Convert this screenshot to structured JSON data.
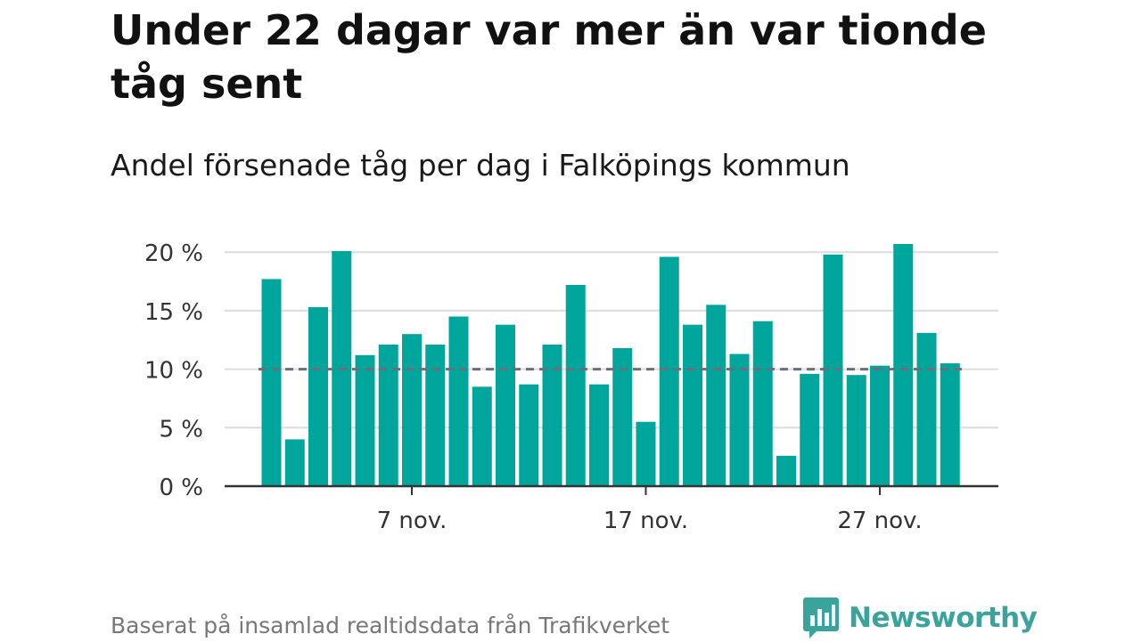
{
  "header": {
    "title": "Under 22 dagar var mer än var tionde tåg sent",
    "subtitle": "Andel försenade tåg per dag i Falköpings kommun"
  },
  "footer": {
    "note": "Baserat på insamlad realtidsdata från Trafikverket",
    "logo_text": "Newsworthy"
  },
  "colors": {
    "bar": "#00a69c",
    "reference_line": "#6e6e7a",
    "grid": "#dcdcdc",
    "axis": "#333333",
    "logo": "#3aa39b"
  },
  "chart_data": {
    "type": "bar",
    "x": [
      "2023-11-01",
      "2023-11-02",
      "2023-11-03",
      "2023-11-04",
      "2023-11-05",
      "2023-11-06",
      "2023-11-07",
      "2023-11-08",
      "2023-11-09",
      "2023-11-10",
      "2023-11-11",
      "2023-11-12",
      "2023-11-13",
      "2023-11-14",
      "2023-11-15",
      "2023-11-16",
      "2023-11-17",
      "2023-11-18",
      "2023-11-19",
      "2023-11-20",
      "2023-11-21",
      "2023-11-22",
      "2023-11-23",
      "2023-11-24",
      "2023-11-25",
      "2023-11-26",
      "2023-11-27",
      "2023-11-28",
      "2023-11-29",
      "2023-11-30"
    ],
    "values": [
      17.7,
      4.0,
      15.3,
      20.1,
      11.2,
      12.1,
      13.0,
      12.1,
      14.5,
      8.5,
      13.8,
      8.7,
      12.1,
      17.2,
      8.7,
      11.8,
      5.5,
      19.6,
      13.8,
      15.5,
      11.3,
      14.1,
      2.6,
      9.6,
      19.8,
      9.5,
      10.3,
      20.7,
      13.1,
      10.5
    ],
    "unit": "%",
    "ylim": [
      0,
      20.8
    ],
    "yticks": [
      0,
      5,
      10,
      15,
      20
    ],
    "ytick_labels": [
      "0 %",
      "5 %",
      "10 %",
      "15 %",
      "20 %"
    ],
    "xticks": [
      "2023-11-07",
      "2023-11-17",
      "2023-11-27"
    ],
    "xtick_labels": [
      "7 nov.",
      "17 nov.",
      "27 nov."
    ],
    "reference_line": {
      "value": 10,
      "style": "dashed"
    },
    "grid": true,
    "legend": "none"
  }
}
